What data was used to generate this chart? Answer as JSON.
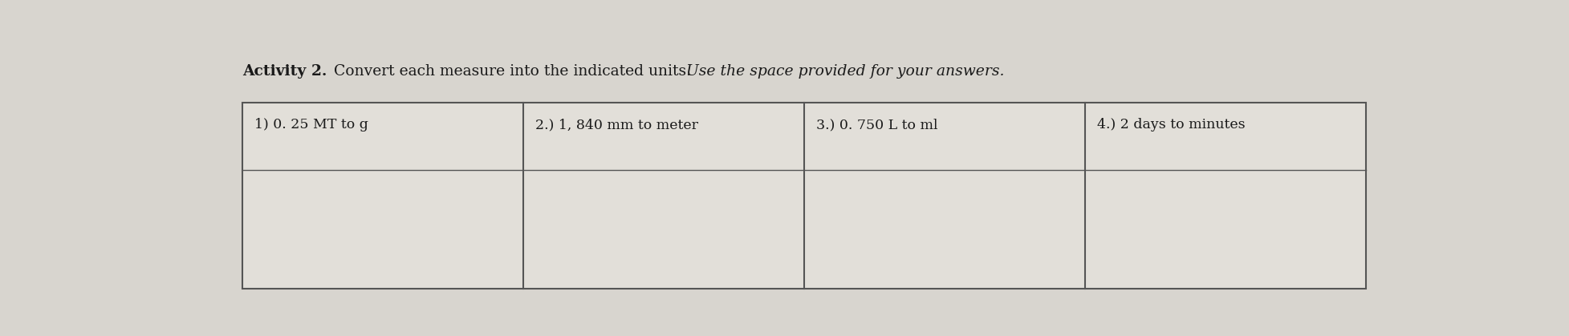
{
  "title_bold": "Activity 2.",
  "title_normal": " Convert each measure into the indicated units. ",
  "title_italic": "Use the space provided for your answers.",
  "background_color": "#d8d5cf",
  "cell_bg_color": "#e2dfd9",
  "border_color": "#555555",
  "text_color": "#1a1a1a",
  "cells": [
    "1) 0. 25 MT to g",
    "2.) 1, 840 mm to meter",
    "3.) 0. 750 L to ml",
    "4.) 2 days to minutes"
  ],
  "title_fontsize": 13.5,
  "cell_fontsize": 12.5,
  "figsize": [
    19.55,
    4.19
  ],
  "dpi": 100
}
